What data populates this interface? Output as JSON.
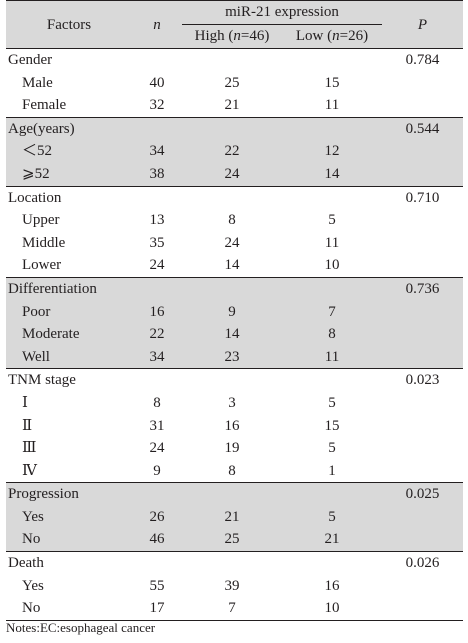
{
  "table": {
    "headers": {
      "factors": "Factors",
      "n": "n",
      "expression_group": "miR-21 expression",
      "high": "High (n=46)",
      "low": "Low (n=26)",
      "p": "P"
    },
    "groups": [
      {
        "label": "Gender",
        "p": "0.784",
        "rows": [
          {
            "label": "Male",
            "n": "40",
            "high": "25",
            "low": "15"
          },
          {
            "label": "Female",
            "n": "32",
            "high": "21",
            "low": "11"
          }
        ]
      },
      {
        "label": "Age(years)",
        "p": "0.544",
        "rows": [
          {
            "label": "＜52",
            "n": "34",
            "high": "22",
            "low": "12"
          },
          {
            "label": "⩾52",
            "n": "38",
            "high": "24",
            "low": "14"
          }
        ]
      },
      {
        "label": "Location",
        "p": "0.710",
        "rows": [
          {
            "label": "Upper",
            "n": "13",
            "high": "8",
            "low": "5"
          },
          {
            "label": "Middle",
            "n": "35",
            "high": "24",
            "low": "11"
          },
          {
            "label": "Lower",
            "n": "24",
            "high": "14",
            "low": "10"
          }
        ]
      },
      {
        "label": "Differentiation",
        "p": "0.736",
        "rows": [
          {
            "label": "Poor",
            "n": "16",
            "high": "9",
            "low": "7"
          },
          {
            "label": "Moderate",
            "n": "22",
            "high": "14",
            "low": "8"
          },
          {
            "label": "Well",
            "n": "34",
            "high": "23",
            "low": "11"
          }
        ]
      },
      {
        "label": "TNM stage",
        "p": "0.023",
        "rows": [
          {
            "label": "Ⅰ",
            "n": "8",
            "high": "3",
            "low": "5"
          },
          {
            "label": "Ⅱ",
            "n": "31",
            "high": "16",
            "low": "15"
          },
          {
            "label": "Ⅲ",
            "n": "24",
            "high": "19",
            "low": "5"
          },
          {
            "label": "Ⅳ",
            "n": "9",
            "high": "8",
            "low": "1"
          }
        ]
      },
      {
        "label": "Progression",
        "p": "0.025",
        "rows": [
          {
            "label": "Yes",
            "n": "26",
            "high": "21",
            "low": "5"
          },
          {
            "label": "No",
            "n": "46",
            "high": "25",
            "low": "21"
          }
        ]
      },
      {
        "label": "Death",
        "p": "0.026",
        "rows": [
          {
            "label": "Yes",
            "n": "55",
            "high": "39",
            "low": "16"
          },
          {
            "label": "No",
            "n": "17",
            "high": "7",
            "low": "10"
          }
        ]
      }
    ]
  },
  "note": "Notes:EC:esophageal cancer"
}
